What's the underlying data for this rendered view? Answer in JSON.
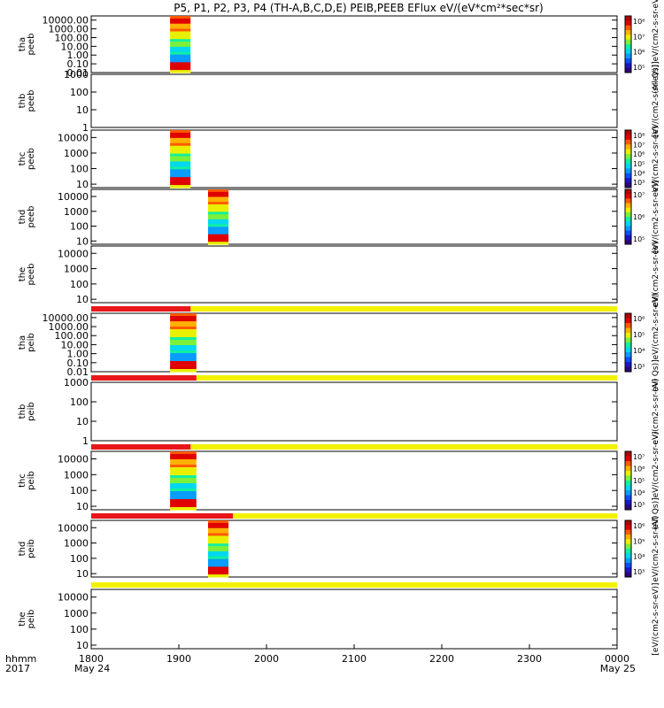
{
  "title": "P5, P1, P2, P3, P4 (TH-A,B,C,D,E) PEIB,PEEB EFlux eV/(eV*cm²*sec*sr)",
  "colors": {
    "red": "#e8161b",
    "yellow": "#f2f200",
    "black": "#000000"
  },
  "chart_data": {
    "type": "heatmap",
    "x_range": [
      "1800",
      "0000"
    ],
    "x_ticks": [
      "1800",
      "1900",
      "2000",
      "2100",
      "2200",
      "2300",
      "0000"
    ],
    "x_date_labels": {
      "start": "May 24",
      "end": "May 25"
    },
    "x_corner_labels": [
      "hhmm",
      "2017"
    ],
    "panels": [
      {
        "id": "tha-peeb",
        "ylabel": [
          "tha",
          "peeb"
        ],
        "yticks": [
          "10000.00",
          "1000.00",
          "100.00",
          "10.00",
          "1.00",
          "0.10",
          "0.01"
        ],
        "yscale": "log",
        "ylim": [
          0.01,
          30000
        ],
        "data_span": [
          "1854",
          "1868"
        ],
        "colorbar": {
          "label": "(All Qs)]eV/(cm2-s-sr-eV)",
          "ticks": [
            "10⁸",
            "10⁷",
            "10⁶",
            "10⁵"
          ]
        }
      },
      {
        "id": "thb-peeb",
        "ylabel": [
          "thb",
          "peeb"
        ],
        "yticks": [
          "1000",
          "100",
          "10",
          "1"
        ],
        "yscale": "log",
        "ylim": [
          1,
          1000
        ],
        "data_span": null,
        "colorbar": {
          "label": "[eV/(cm2-s-sr-eV)]",
          "ticks": []
        }
      },
      {
        "id": "thc-peeb",
        "ylabel": [
          "thc",
          "peeb"
        ],
        "yticks": [
          "10000",
          "1000",
          "100",
          "10"
        ],
        "yscale": "log",
        "ylim": [
          6,
          30000
        ],
        "data_span": [
          "1854",
          "1868"
        ],
        "colorbar": {
          "label": "eV/(cm2-s-sr-eV)",
          "ticks": [
            "10⁸",
            "10⁷",
            "10⁶",
            "10⁵",
            "10⁴",
            "10³"
          ]
        }
      },
      {
        "id": "thd-peeb",
        "ylabel": [
          "thd",
          "peeb"
        ],
        "yticks": [
          "10000",
          "1000",
          "100",
          "10"
        ],
        "yscale": "log",
        "ylim": [
          6,
          30000
        ],
        "data_span": [
          "1920",
          "1934"
        ],
        "colorbar": {
          "label": "[eV/(cm2-s-sr-eV)]",
          "ticks": [
            "10⁷",
            "10⁶",
            "10⁵"
          ]
        }
      },
      {
        "id": "the-peeb",
        "ylabel": [
          "the",
          "peeb"
        ],
        "yticks": [
          "10000",
          "1000",
          "100",
          "10"
        ],
        "yscale": "log",
        "ylim": [
          6,
          30000
        ],
        "data_span": null,
        "colorbar": {
          "label": "eV/(cm2-s-sr-eV)",
          "ticks": []
        }
      },
      {
        "id": "tha-peib",
        "ylabel": [
          "tha",
          "peib"
        ],
        "yticks": [
          "10000.00",
          "1000.00",
          "100.00",
          "10.00",
          "1.00",
          "0.10",
          "0.01"
        ],
        "yscale": "log",
        "ylim": [
          0.01,
          30000
        ],
        "data_span": [
          "1854",
          "1872"
        ],
        "colorbar": {
          "label": "(All Qs)]eV/(cm2-s-sr-eV)",
          "ticks": [
            "10⁶",
            "10⁵",
            "10⁴",
            "10³"
          ]
        }
      },
      {
        "id": "thb-peib",
        "ylabel": [
          "thb",
          "peib"
        ],
        "yticks": [
          "1000",
          "100",
          "10",
          "1"
        ],
        "yscale": "log",
        "ylim": [
          1,
          1000
        ],
        "data_span": null,
        "colorbar": {
          "label": "eV/(cm2-s-sr-eV)",
          "ticks": []
        }
      },
      {
        "id": "thc-peib",
        "ylabel": [
          "thc",
          "peib"
        ],
        "yticks": [
          "10000",
          "1000",
          "100",
          "10"
        ],
        "yscale": "log",
        "ylim": [
          6,
          30000
        ],
        "data_span": [
          "1854",
          "1872"
        ],
        "colorbar": {
          "label": "(All Qs)]eV/(cm2-s-sr-eV)",
          "ticks": [
            "10⁷",
            "10⁶",
            "10⁵",
            "10⁴",
            "10³"
          ]
        }
      },
      {
        "id": "thd-peib",
        "ylabel": [
          "thd",
          "peib"
        ],
        "yticks": [
          "10000",
          "1000",
          "100",
          "10"
        ],
        "yscale": "log",
        "ylim": [
          6,
          30000
        ],
        "data_span": [
          "1920",
          "1934"
        ],
        "colorbar": {
          "label": "eV/(cm2-s-sr-eV)",
          "ticks": [
            "10⁶",
            "10⁵",
            "10⁴",
            "10³"
          ]
        }
      },
      {
        "id": "the-peib",
        "ylabel": [
          "the",
          "peib"
        ],
        "yticks": [
          "10000",
          "1000",
          "100",
          "10"
        ],
        "yscale": "log",
        "ylim": [
          6,
          30000
        ],
        "data_span": null,
        "colorbar": {
          "label": "[eV/(cm2-s-sr-eV)]",
          "ticks": []
        }
      }
    ],
    "status_bars": [
      {
        "after_panel": "the-peeb",
        "red_span": [
          "1800",
          "1868"
        ]
      },
      {
        "after_panel": "thb-peib",
        "red_span": [
          "1800",
          "1872"
        ]
      },
      {
        "after_panel": "thc-peib",
        "red_span": [
          "1800",
          "1868"
        ]
      },
      {
        "after_panel": "thc-peib-2",
        "red_span": [
          "1800",
          "1937"
        ]
      },
      {
        "after_panel": "thd-peib",
        "red_span": null
      }
    ]
  }
}
